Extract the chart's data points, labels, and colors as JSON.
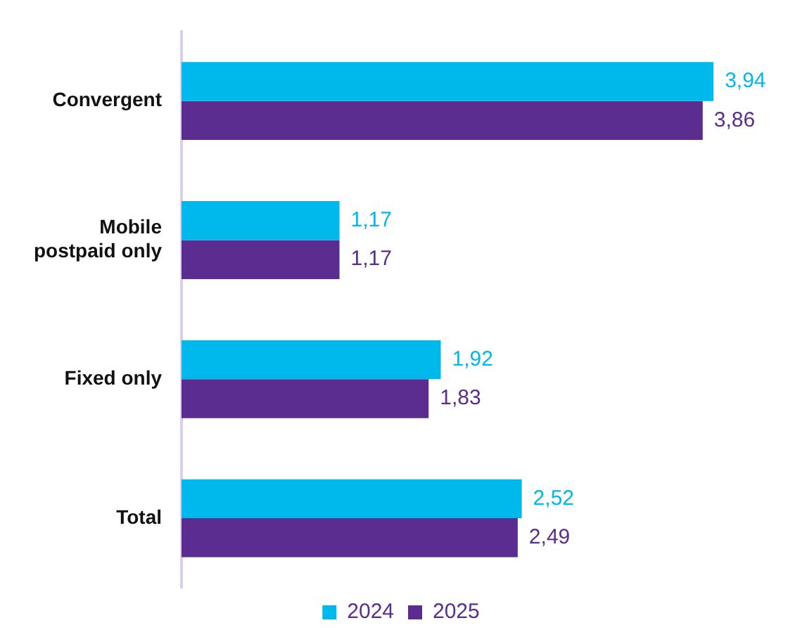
{
  "chart_data": {
    "type": "bar",
    "orientation": "horizontal",
    "categories": [
      "Convergent",
      "Mobile postpaid only",
      "Fixed only",
      "Total"
    ],
    "series": [
      {
        "name": "2024",
        "color": "#00b9ec",
        "values": [
          3.94,
          1.17,
          1.92,
          2.52
        ],
        "value_labels": [
          "3,94",
          "1,17",
          "1,92",
          "2,52"
        ]
      },
      {
        "name": "2025",
        "color": "#5c2d91",
        "values": [
          3.86,
          1.17,
          1.83,
          2.49
        ],
        "value_labels": [
          "3,86",
          "1,17",
          "1,83",
          "2,49"
        ]
      }
    ],
    "legend": "bottom"
  }
}
